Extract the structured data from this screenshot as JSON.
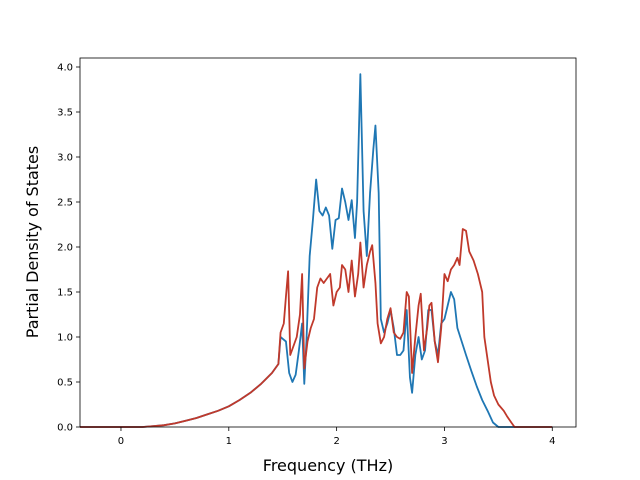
{
  "chart_data": {
    "type": "line",
    "title": "",
    "xlabel": "Frequency (THz)",
    "ylabel": "Partial Density of States",
    "xlim": [
      -0.38,
      4.22
    ],
    "ylim": [
      0.0,
      4.1
    ],
    "xticks": [
      0,
      1,
      2,
      3,
      4
    ],
    "xtick_labels": [
      "0",
      "1",
      "2",
      "3",
      "4"
    ],
    "yticks": [
      0.0,
      0.5,
      1.0,
      1.5,
      2.0,
      2.5,
      3.0,
      3.5,
      4.0
    ],
    "ytick_labels": [
      "0.0",
      "0.5",
      "1.0",
      "1.5",
      "2.0",
      "2.5",
      "3.0",
      "3.5",
      "4.0"
    ],
    "grid": false,
    "legend": "none",
    "series": [
      {
        "color": "#1f77b4",
        "points": [
          [
            -0.38,
            0.0
          ],
          [
            0.0,
            0.0
          ],
          [
            0.2,
            0.0
          ],
          [
            0.3,
            0.01
          ],
          [
            0.4,
            0.02
          ],
          [
            0.5,
            0.04
          ],
          [
            0.6,
            0.07
          ],
          [
            0.7,
            0.1
          ],
          [
            0.8,
            0.14
          ],
          [
            0.9,
            0.18
          ],
          [
            1.0,
            0.23
          ],
          [
            1.1,
            0.3
          ],
          [
            1.2,
            0.38
          ],
          [
            1.3,
            0.48
          ],
          [
            1.4,
            0.6
          ],
          [
            1.46,
            0.7
          ],
          [
            1.48,
            1.0
          ],
          [
            1.5,
            0.98
          ],
          [
            1.53,
            0.95
          ],
          [
            1.56,
            0.6
          ],
          [
            1.59,
            0.5
          ],
          [
            1.62,
            0.58
          ],
          [
            1.65,
            0.85
          ],
          [
            1.68,
            1.15
          ],
          [
            1.7,
            0.48
          ],
          [
            1.72,
            0.95
          ],
          [
            1.75,
            1.9
          ],
          [
            1.78,
            2.3
          ],
          [
            1.81,
            2.75
          ],
          [
            1.84,
            2.4
          ],
          [
            1.87,
            2.35
          ],
          [
            1.9,
            2.44
          ],
          [
            1.93,
            2.35
          ],
          [
            1.96,
            1.98
          ],
          [
            1.99,
            2.3
          ],
          [
            2.02,
            2.32
          ],
          [
            2.05,
            2.65
          ],
          [
            2.08,
            2.5
          ],
          [
            2.11,
            2.3
          ],
          [
            2.14,
            2.52
          ],
          [
            2.17,
            2.1
          ],
          [
            2.19,
            2.5
          ],
          [
            2.22,
            3.92
          ],
          [
            2.25,
            2.4
          ],
          [
            2.28,
            1.9
          ],
          [
            2.31,
            2.6
          ],
          [
            2.34,
            3.08
          ],
          [
            2.36,
            3.35
          ],
          [
            2.39,
            2.6
          ],
          [
            2.41,
            1.2
          ],
          [
            2.44,
            1.05
          ],
          [
            2.47,
            1.15
          ],
          [
            2.5,
            1.3
          ],
          [
            2.53,
            1.1
          ],
          [
            2.56,
            0.8
          ],
          [
            2.59,
            0.8
          ],
          [
            2.62,
            0.85
          ],
          [
            2.65,
            1.3
          ],
          [
            2.68,
            0.55
          ],
          [
            2.7,
            0.38
          ],
          [
            2.73,
            0.8
          ],
          [
            2.76,
            1.0
          ],
          [
            2.79,
            0.75
          ],
          [
            2.82,
            0.85
          ],
          [
            2.85,
            1.3
          ],
          [
            2.88,
            1.3
          ],
          [
            2.91,
            0.95
          ],
          [
            2.94,
            0.8
          ],
          [
            2.97,
            1.15
          ],
          [
            3.0,
            1.2
          ],
          [
            3.03,
            1.35
          ],
          [
            3.06,
            1.5
          ],
          [
            3.09,
            1.42
          ],
          [
            3.12,
            1.1
          ],
          [
            3.16,
            0.95
          ],
          [
            3.2,
            0.8
          ],
          [
            3.25,
            0.62
          ],
          [
            3.3,
            0.45
          ],
          [
            3.35,
            0.3
          ],
          [
            3.4,
            0.18
          ],
          [
            3.45,
            0.05
          ],
          [
            3.5,
            0.0
          ],
          [
            3.6,
            0.0
          ],
          [
            4.0,
            0.0
          ]
        ]
      },
      {
        "color": "#c0392b",
        "points": [
          [
            -0.38,
            0.0
          ],
          [
            0.0,
            0.0
          ],
          [
            0.2,
            0.0
          ],
          [
            0.3,
            0.01
          ],
          [
            0.4,
            0.02
          ],
          [
            0.5,
            0.04
          ],
          [
            0.6,
            0.07
          ],
          [
            0.7,
            0.1
          ],
          [
            0.8,
            0.14
          ],
          [
            0.9,
            0.18
          ],
          [
            1.0,
            0.23
          ],
          [
            1.1,
            0.3
          ],
          [
            1.2,
            0.38
          ],
          [
            1.3,
            0.48
          ],
          [
            1.4,
            0.6
          ],
          [
            1.46,
            0.7
          ],
          [
            1.48,
            1.05
          ],
          [
            1.51,
            1.15
          ],
          [
            1.53,
            1.45
          ],
          [
            1.55,
            1.73
          ],
          [
            1.57,
            0.8
          ],
          [
            1.6,
            0.9
          ],
          [
            1.63,
            1.0
          ],
          [
            1.66,
            1.25
          ],
          [
            1.68,
            1.7
          ],
          [
            1.7,
            0.65
          ],
          [
            1.73,
            0.95
          ],
          [
            1.76,
            1.1
          ],
          [
            1.79,
            1.2
          ],
          [
            1.82,
            1.55
          ],
          [
            1.85,
            1.65
          ],
          [
            1.88,
            1.6
          ],
          [
            1.91,
            1.65
          ],
          [
            1.94,
            1.7
          ],
          [
            1.97,
            1.35
          ],
          [
            2.0,
            1.5
          ],
          [
            2.03,
            1.55
          ],
          [
            2.05,
            1.8
          ],
          [
            2.08,
            1.75
          ],
          [
            2.11,
            1.5
          ],
          [
            2.14,
            1.85
          ],
          [
            2.17,
            1.45
          ],
          [
            2.2,
            1.7
          ],
          [
            2.22,
            2.05
          ],
          [
            2.25,
            1.55
          ],
          [
            2.28,
            1.8
          ],
          [
            2.31,
            1.95
          ],
          [
            2.33,
            2.02
          ],
          [
            2.36,
            1.6
          ],
          [
            2.38,
            1.15
          ],
          [
            2.41,
            0.93
          ],
          [
            2.44,
            1.0
          ],
          [
            2.47,
            1.2
          ],
          [
            2.5,
            1.32
          ],
          [
            2.53,
            1.05
          ],
          [
            2.56,
            1.0
          ],
          [
            2.59,
            0.98
          ],
          [
            2.62,
            1.05
          ],
          [
            2.65,
            1.5
          ],
          [
            2.67,
            1.45
          ],
          [
            2.7,
            0.6
          ],
          [
            2.73,
            1.0
          ],
          [
            2.76,
            1.35
          ],
          [
            2.78,
            1.48
          ],
          [
            2.81,
            0.85
          ],
          [
            2.84,
            1.1
          ],
          [
            2.86,
            1.35
          ],
          [
            2.88,
            1.38
          ],
          [
            2.91,
            0.95
          ],
          [
            2.94,
            0.72
          ],
          [
            2.97,
            1.1
          ],
          [
            3.0,
            1.7
          ],
          [
            3.03,
            1.62
          ],
          [
            3.06,
            1.75
          ],
          [
            3.09,
            1.8
          ],
          [
            3.12,
            1.88
          ],
          [
            3.14,
            1.8
          ],
          [
            3.17,
            2.2
          ],
          [
            3.2,
            2.18
          ],
          [
            3.23,
            1.95
          ],
          [
            3.27,
            1.85
          ],
          [
            3.31,
            1.7
          ],
          [
            3.35,
            1.5
          ],
          [
            3.37,
            1.0
          ],
          [
            3.4,
            0.75
          ],
          [
            3.43,
            0.5
          ],
          [
            3.46,
            0.35
          ],
          [
            3.5,
            0.25
          ],
          [
            3.55,
            0.18
          ],
          [
            3.58,
            0.12
          ],
          [
            3.62,
            0.05
          ],
          [
            3.65,
            0.0
          ],
          [
            3.8,
            0.0
          ],
          [
            4.0,
            0.0
          ]
        ]
      }
    ]
  }
}
